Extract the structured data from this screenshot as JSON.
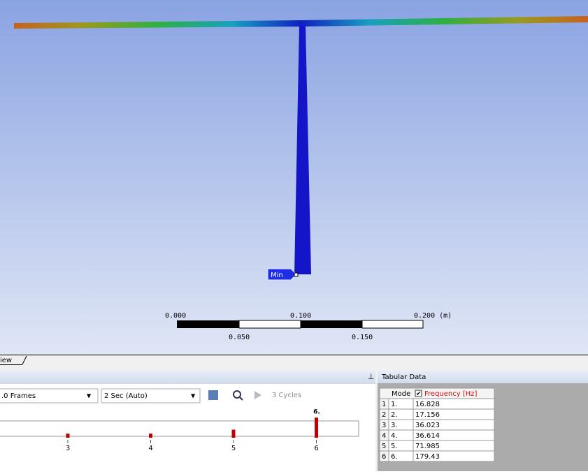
{
  "viewport": {
    "min_label": "Min",
    "scale": {
      "top_labels": [
        "0.000",
        "0.100",
        "0.200 (m)"
      ],
      "bottom_labels": [
        "0.050",
        "0.150"
      ]
    }
  },
  "tab": {
    "label": "iew"
  },
  "graph_panel": {
    "frames": ".0 Frames",
    "duration": "2 Sec (Auto)",
    "cycles": "3 Cycles",
    "selected_label": "6.",
    "x_labels": [
      "3",
      "4",
      "5",
      "6"
    ]
  },
  "tabular_data": {
    "title": "Tabular Data",
    "columns": [
      "Mode",
      "Frequency [Hz]"
    ],
    "rows": [
      [
        1,
        "1.",
        16.828
      ],
      [
        2,
        "2.",
        17.156
      ],
      [
        3,
        "3.",
        36.023
      ],
      [
        4,
        "4.",
        36.614
      ],
      [
        5,
        "5.",
        71.985
      ],
      [
        6,
        "6.",
        179.43
      ]
    ]
  }
}
